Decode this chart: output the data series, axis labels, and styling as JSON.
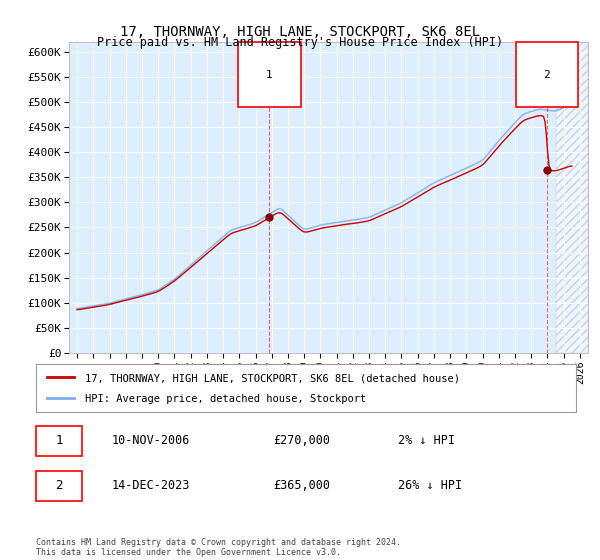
{
  "title": "17, THORNWAY, HIGH LANE, STOCKPORT, SK6 8EL",
  "subtitle": "Price paid vs. HM Land Registry's House Price Index (HPI)",
  "ylabel_ticks": [
    "£0",
    "£50K",
    "£100K",
    "£150K",
    "£200K",
    "£250K",
    "£300K",
    "£350K",
    "£400K",
    "£450K",
    "£500K",
    "£550K",
    "£600K"
  ],
  "ylim": [
    0,
    620000
  ],
  "yticks": [
    0,
    50000,
    100000,
    150000,
    200000,
    250000,
    300000,
    350000,
    400000,
    450000,
    500000,
    550000,
    600000
  ],
  "xmin": 1994.5,
  "xmax": 2026.5,
  "sale1_x": 2006.86,
  "sale1_y": 270000,
  "sale2_x": 2023.96,
  "sale2_y": 365000,
  "hpi_color": "#7fb0e8",
  "property_color": "#cc0000",
  "bg_color": "#ddeeff",
  "legend_line1": "17, THORNWAY, HIGH LANE, STOCKPORT, SK6 8EL (detached house)",
  "legend_line2": "HPI: Average price, detached house, Stockport",
  "annotation1_label": "1",
  "annotation1_date": "10-NOV-2006",
  "annotation1_price": "£270,000",
  "annotation1_hpi": "2% ↓ HPI",
  "annotation2_label": "2",
  "annotation2_date": "14-DEC-2023",
  "annotation2_price": "£365,000",
  "annotation2_hpi": "26% ↓ HPI",
  "footnote": "Contains HM Land Registry data © Crown copyright and database right 2024.\nThis data is licensed under the Open Government Licence v3.0."
}
